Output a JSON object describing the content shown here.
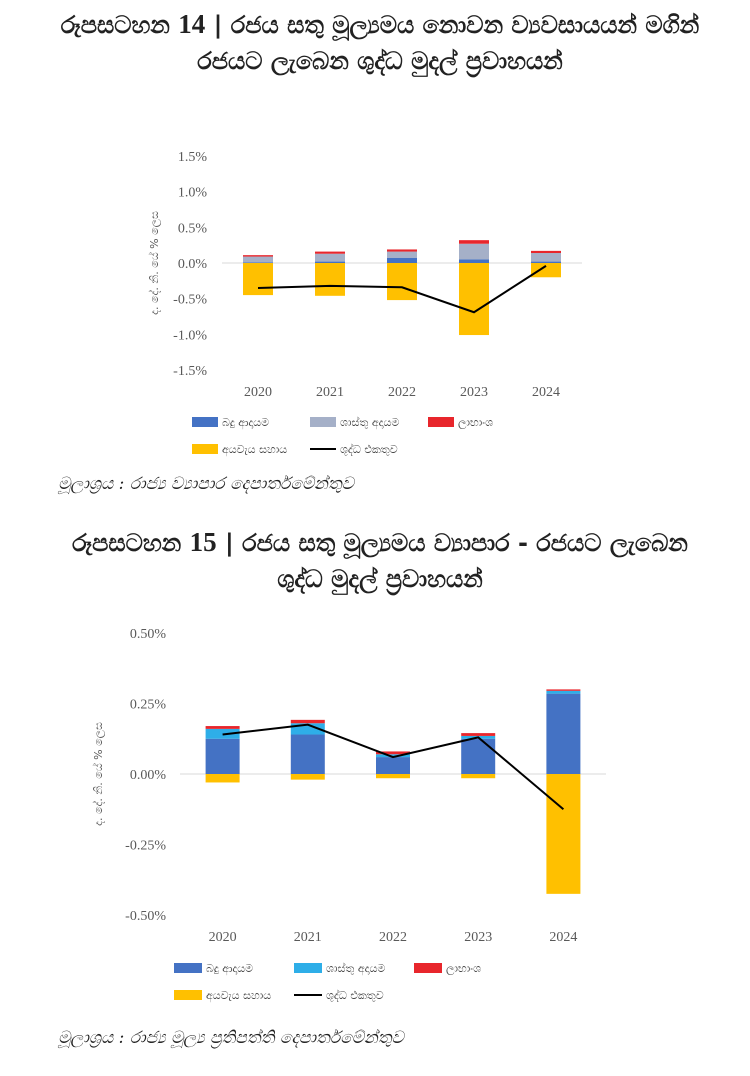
{
  "figure14": {
    "title_prefix": "රූපසටහන",
    "title_number": "14",
    "title_text": "| රජය සතු මූල්‍යමය නොවන ව්‍යවසායයන් මගින් රජයට ලැබෙන ශුද්ධ මුදල් ප්‍රවාහයන්",
    "source": "මූලාශ්‍රය : රාජ්‍ය ව්‍යාපාර දෙපාර්තමේන්තුව"
  },
  "figure15": {
    "title_prefix": "රූපසටහන",
    "title_number": "15",
    "title_text": "| රජය සතු මූල්‍යමය ව්‍යාපාර - රජයට ලැබෙන ශුද්ධ මුදල් ප්‍රවාහයන්",
    "source": "මූලාශ්‍රය : රාජ්‍ය මූල්‍ය ප්‍රතිපත්ති දෙපාර්තමේන්තුව"
  },
  "chart_data": [
    {
      "type": "bar",
      "stacked": true,
      "categories": [
        "2020",
        "2021",
        "2022",
        "2023",
        "2024"
      ],
      "ylabel": "ද. දේ. නි. යේ % ලෙස",
      "ylim": [
        -1.5,
        1.5
      ],
      "yticks": [
        "1.5%",
        "1.0%",
        "0.5%",
        "0.0%",
        "-0.5%",
        "-1.0%",
        "-1.5%"
      ],
      "ytick_values": [
        1.5,
        1.0,
        0.5,
        0.0,
        -0.5,
        -1.0,
        -1.5
      ],
      "grid": false,
      "legend_position": "bottom",
      "series": [
        {
          "name": "බදු ආදායම",
          "color": "#4472C4",
          "values": [
            0.01,
            0.02,
            0.07,
            0.05,
            0.02
          ]
        },
        {
          "name": "ශාස්තු අදායම",
          "color": "#A5B0C8",
          "values": [
            0.08,
            0.11,
            0.09,
            0.22,
            0.12
          ]
        },
        {
          "name": "ලාභාංශ",
          "color": "#E8262C",
          "values": [
            0.02,
            0.03,
            0.03,
            0.05,
            0.03
          ]
        },
        {
          "name": "අයවැය සහාය",
          "color": "#FFC000",
          "values": [
            -0.45,
            -0.46,
            -0.52,
            -1.01,
            -0.2
          ]
        }
      ],
      "line": {
        "name": "ශුද්ධ එකතුව",
        "color": "#000000",
        "values": [
          -0.35,
          -0.32,
          -0.34,
          -0.69,
          -0.04
        ]
      }
    },
    {
      "type": "bar",
      "stacked": true,
      "categories": [
        "2020",
        "2021",
        "2022",
        "2023",
        "2024"
      ],
      "ylabel": "ද. දේ. නි. යේ % ලෙස",
      "ylim": [
        -0.5,
        0.5
      ],
      "yticks": [
        "0.50%",
        "0.25%",
        "0.00%",
        "-0.25%",
        "-0.50%"
      ],
      "ytick_values": [
        0.5,
        0.25,
        0.0,
        -0.25,
        -0.5
      ],
      "grid": false,
      "legend_position": "bottom",
      "series": [
        {
          "name": "බදු ආදායම",
          "color": "#4472C4",
          "values": [
            0.125,
            0.14,
            0.06,
            0.125,
            0.285
          ]
        },
        {
          "name": "ශාස්තු අදායම",
          "color": "#2EAEE8",
          "values": [
            0.035,
            0.04,
            0.01,
            0.01,
            0.01
          ]
        },
        {
          "name": "ලාභාංශ",
          "color": "#E8262C",
          "values": [
            0.01,
            0.012,
            0.01,
            0.01,
            0.005
          ]
        },
        {
          "name": "අයවැය සහාය",
          "color": "#FFC000",
          "values": [
            -0.03,
            -0.02,
            -0.015,
            -0.015,
            -0.425
          ]
        }
      ],
      "line": {
        "name": "ශුද්ධ එකතුව",
        "color": "#000000",
        "values": [
          0.14,
          0.175,
          0.06,
          0.13,
          -0.125
        ]
      }
    }
  ]
}
